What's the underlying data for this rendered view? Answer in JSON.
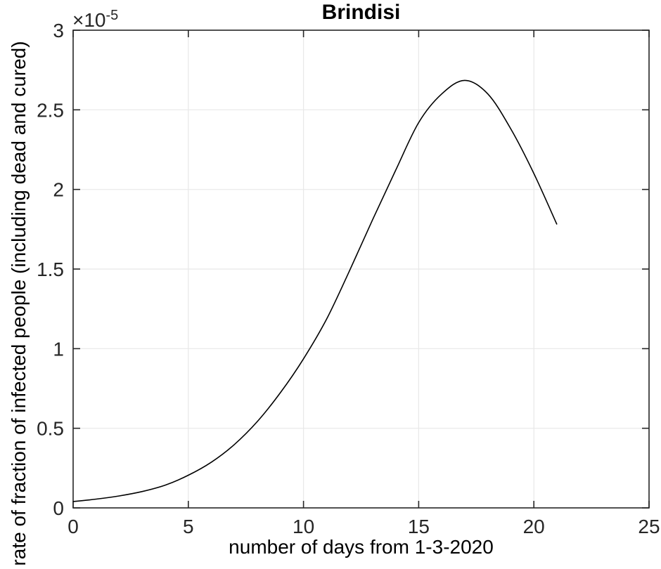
{
  "figure": {
    "background": "#ffffff"
  },
  "chart_data": {
    "type": "line",
    "title": "Brindisi",
    "xlabel": "number of days from 1-3-2020",
    "ylabel": "rate of fraction of infected people (including dead and cured)",
    "y_exponent_base": "×10",
    "y_exponent_power": "-5",
    "y_unit_scale": "1e-5",
    "xlim": [
      0,
      25
    ],
    "ylim": [
      0,
      3
    ],
    "x_ticks": [
      0,
      5,
      10,
      15,
      20,
      25
    ],
    "x_tick_labels": [
      "0",
      "5",
      "10",
      "15",
      "20",
      "25"
    ],
    "y_ticks": [
      0,
      0.5,
      1,
      1.5,
      2,
      2.5,
      3
    ],
    "y_tick_labels": [
      "0",
      "0.5",
      "1",
      "1.5",
      "2",
      "2.5",
      "3"
    ],
    "grid": true,
    "legend": null,
    "series": [
      {
        "name": "rate of fraction of infected people",
        "color": "#000000",
        "x": [
          0,
          1,
          2,
          3,
          4,
          5,
          6,
          7,
          8,
          9,
          10,
          11,
          12,
          13,
          14,
          15,
          16,
          17,
          18,
          19,
          20,
          21
        ],
        "y": [
          0.04,
          0.055,
          0.075,
          0.103,
          0.143,
          0.205,
          0.287,
          0.398,
          0.543,
          0.724,
          0.936,
          1.185,
          1.49,
          1.81,
          2.12,
          2.42,
          2.6,
          2.685,
          2.6,
          2.38,
          2.1,
          1.78
        ]
      }
    ],
    "colors": {
      "axis": "#262626",
      "grid": "#e8e8e8",
      "line": "#000000",
      "text": "#000000"
    }
  }
}
